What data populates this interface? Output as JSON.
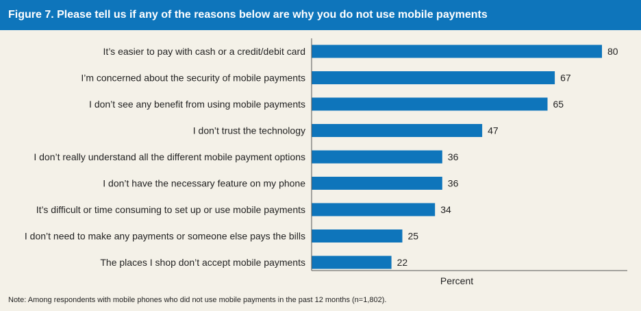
{
  "header": {
    "title": "Figure 7. Please tell us if any of the reasons below are why you do not use mobile payments"
  },
  "note": "Note: Among respondents with mobile phones who did not use mobile payments in the past 12 months (n=1,802).",
  "colors": {
    "header_bg": "#0e75bb",
    "panel_bg": "#f4f1e8",
    "bar": "#0e75bb",
    "text": "#222222"
  },
  "chart_data": {
    "type": "bar",
    "orientation": "horizontal",
    "categories": [
      "It’s easier to pay with cash or a credit/debit card",
      "I’m concerned about the security of mobile payments",
      "I don’t see any benefit from using mobile payments",
      "I don’t trust the technology",
      "I don’t really understand all the different mobile payment options",
      "I don’t have the necessary feature on my phone",
      "It’s difficult or time consuming to set up or use mobile payments",
      "I don’t need to make any payments or someone else pays the bills",
      "The places I shop don’t accept mobile payments"
    ],
    "values": [
      80,
      67,
      65,
      47,
      36,
      36,
      34,
      25,
      22
    ],
    "xlabel": "Percent",
    "ylabel": "",
    "xlim": [
      0,
      85
    ],
    "grid": false,
    "data_labels": true
  }
}
